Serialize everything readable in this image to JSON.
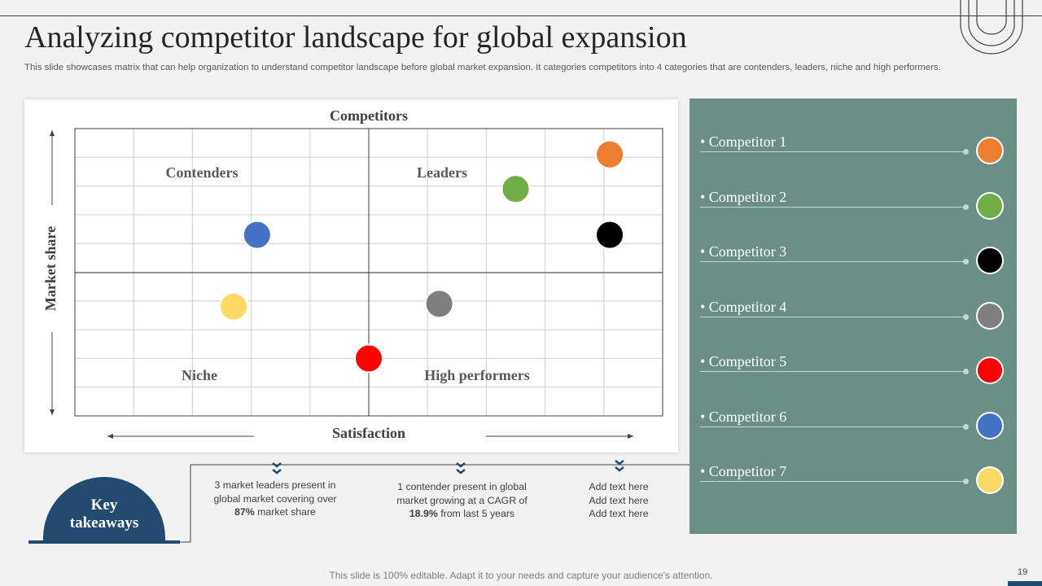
{
  "slide": {
    "title": "Analyzing competitor landscape for global expansion",
    "subtitle": "This slide showcases matrix that can help organization to understand competitor landscape before global market expansion. It categories competitors into 4 categories that are contenders, leaders, niche and high performers.",
    "footer": "This slide is 100% editable. Adapt it to your needs and capture your audience's attention.",
    "page_number": "19"
  },
  "chart_data": {
    "type": "scatter",
    "title": "Competitors",
    "xlabel": "Satisfaction",
    "ylabel": "Market share",
    "xlim": [
      0,
      10
    ],
    "ylim": [
      0,
      10
    ],
    "grid": true,
    "quadrants": [
      "Contenders",
      "Leaders",
      "Niche",
      "High performers"
    ],
    "points": [
      {
        "name": "Competitor 1",
        "x": 9.1,
        "y": 9.1,
        "color": "#ed7d31"
      },
      {
        "name": "Competitor 2",
        "x": 7.5,
        "y": 7.9,
        "color": "#70ad47"
      },
      {
        "name": "Competitor 3",
        "x": 9.1,
        "y": 6.3,
        "color": "#000000"
      },
      {
        "name": "Competitor 4",
        "x": 6.2,
        "y": 3.9,
        "color": "#7f7f7f"
      },
      {
        "name": "Competitor 5",
        "x": 5.0,
        "y": 2.0,
        "color": "#ff0000"
      },
      {
        "name": "Competitor 6",
        "x": 3.1,
        "y": 6.3,
        "color": "#4472c4"
      },
      {
        "name": "Competitor 7",
        "x": 2.7,
        "y": 3.8,
        "color": "#ffd966"
      }
    ]
  },
  "legend": {
    "bullet": "•",
    "items": [
      "Competitor 1",
      "Competitor 2",
      "Competitor 3",
      "Competitor 4",
      "Competitor 5",
      "Competitor 6",
      "Competitor 7"
    ]
  },
  "takeaways": {
    "heading": "Key\ntakeaways",
    "notes": [
      {
        "before": "3 market leaders present in global market covering over ",
        "bold": "87%",
        "after": " market share"
      },
      {
        "before": "1 contender present in global market growing at a CAGR of ",
        "bold": "18.9%",
        "after": " from last 5 years"
      },
      {
        "before": "Add text here Add text here Add text here",
        "bold": "",
        "after": ""
      }
    ]
  },
  "colors": {
    "panel": "#6a8f86",
    "accent": "#234a6f"
  }
}
